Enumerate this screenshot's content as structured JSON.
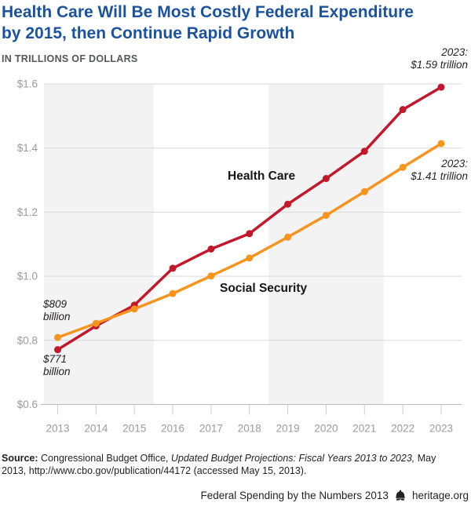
{
  "header": {
    "title": "Health Care Will Be Most Costly Federal Expenditure by 2015, then Continue Rapid Growth",
    "title_line1": "Health Care Will Be Most Costly Federal Expenditure",
    "title_line2": "by 2015, then Continue Rapid Growth",
    "units_label": "IN TRILLIONS OF DOLLARS"
  },
  "chart_data": {
    "type": "line",
    "title": "Health Care Will Be Most Costly Federal Expenditure by 2015, then Continue Rapid Growth",
    "subtitle": "IN TRILLIONS OF DOLLARS",
    "xlabel": "",
    "ylabel": "Trillions of dollars",
    "x": [
      2013,
      2014,
      2015,
      2016,
      2017,
      2018,
      2019,
      2020,
      2021,
      2022,
      2023
    ],
    "series": [
      {
        "name": "Health Care",
        "color": "#c2182b",
        "values": [
          0.771,
          0.845,
          0.91,
          1.025,
          1.085,
          1.133,
          1.225,
          1.305,
          1.39,
          1.52,
          1.59
        ],
        "start_label": "$771 billion",
        "end_label": "2023: $1.59 trillion"
      },
      {
        "name": "Social Security",
        "color": "#f7941e",
        "values": [
          0.809,
          0.853,
          0.898,
          0.946,
          1.001,
          1.057,
          1.122,
          1.19,
          1.264,
          1.34,
          1.414
        ],
        "start_label": "$809 billion",
        "end_label": "2023: $1.41 trillion"
      }
    ],
    "ylim": [
      0.6,
      1.6
    ],
    "yticks": [
      {
        "value": 0.6,
        "label": "$0.6"
      },
      {
        "value": 0.8,
        "label": "$0.8"
      },
      {
        "value": 1.0,
        "label": "$1.0"
      },
      {
        "value": 1.2,
        "label": "$1.2"
      },
      {
        "value": 1.4,
        "label": "$1.4"
      },
      {
        "value": 1.6,
        "label": "$1.6"
      }
    ],
    "grid": true,
    "legend_position": "inline-labels",
    "shaded_year_bands": [
      [
        null,
        2015.5
      ],
      [
        2018.5,
        2021.5
      ]
    ],
    "annotations": {
      "hc_end": "2023:\n$1.59 trillion",
      "ss_end": "2023:\n$1.41 trillion",
      "ss_start": "$809\nbillion",
      "hc_start": "$771\nbillion",
      "hc_label": "Health Care",
      "ss_label": "Social Security"
    }
  },
  "source": {
    "label": "Source:",
    "text_before_italic": " Congressional Budget Office, ",
    "italic": "Updated Budget Projections: Fiscal Years 2013 to 2023,",
    "text_after_italic": " May 2013, http://www.cbo.gov/publication/44172 (accessed May 15, 2013)."
  },
  "footer": {
    "report_name": "Federal Spending by the Numbers 2013",
    "brand_icon": "liberty-bell-icon",
    "site": "heritage.org"
  },
  "colors": {
    "title_blue": "#1a529e",
    "health_care_red": "#c2182b",
    "social_security_orange": "#f7941e",
    "band_gray": "#f3f3f4",
    "gridline_gray": "#d9d9dc",
    "axis_line_gray": "#b9b9b9",
    "tick_gray": "#cccccc",
    "axis_text_gray": "#9b9b9b"
  }
}
